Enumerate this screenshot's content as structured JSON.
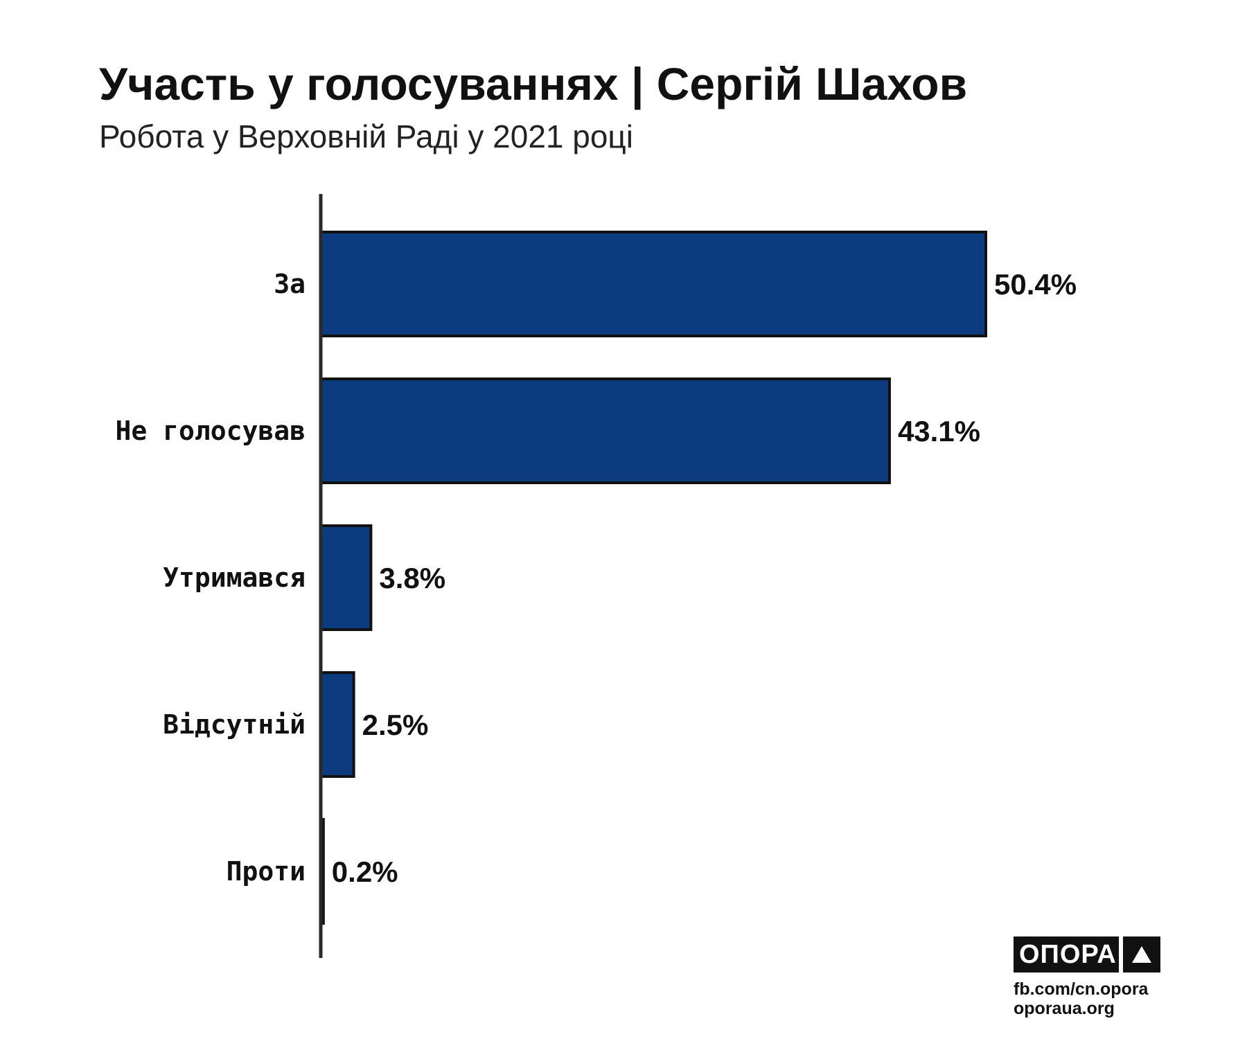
{
  "chart_data": {
    "type": "bar",
    "orientation": "horizontal",
    "title": "Участь у голосуваннях | Сергій Шахов",
    "subtitle": "Робота у Верховній Раді у 2021 році",
    "categories": [
      "За",
      "Не голосував",
      "Утримався",
      "Відсутній",
      "Проти"
    ],
    "values": [
      50.4,
      43.1,
      3.8,
      2.5,
      0.2
    ],
    "value_labels": [
      "50.4%",
      "43.1%",
      "3.8%",
      "2.5%",
      "0.2%"
    ],
    "xlim": [
      0,
      50.4
    ],
    "grid": false,
    "legend": "none",
    "colors": {
      "bar": "#0d3b80",
      "bar_edge": "#111111",
      "axis": "#2a2a2a",
      "text": "#111111"
    }
  },
  "brand": {
    "logo_word": "ОПОРА",
    "logo_icon": "triangle-up-icon",
    "facebook": "fb.com/cn.opora",
    "website": "oporaua.org"
  }
}
